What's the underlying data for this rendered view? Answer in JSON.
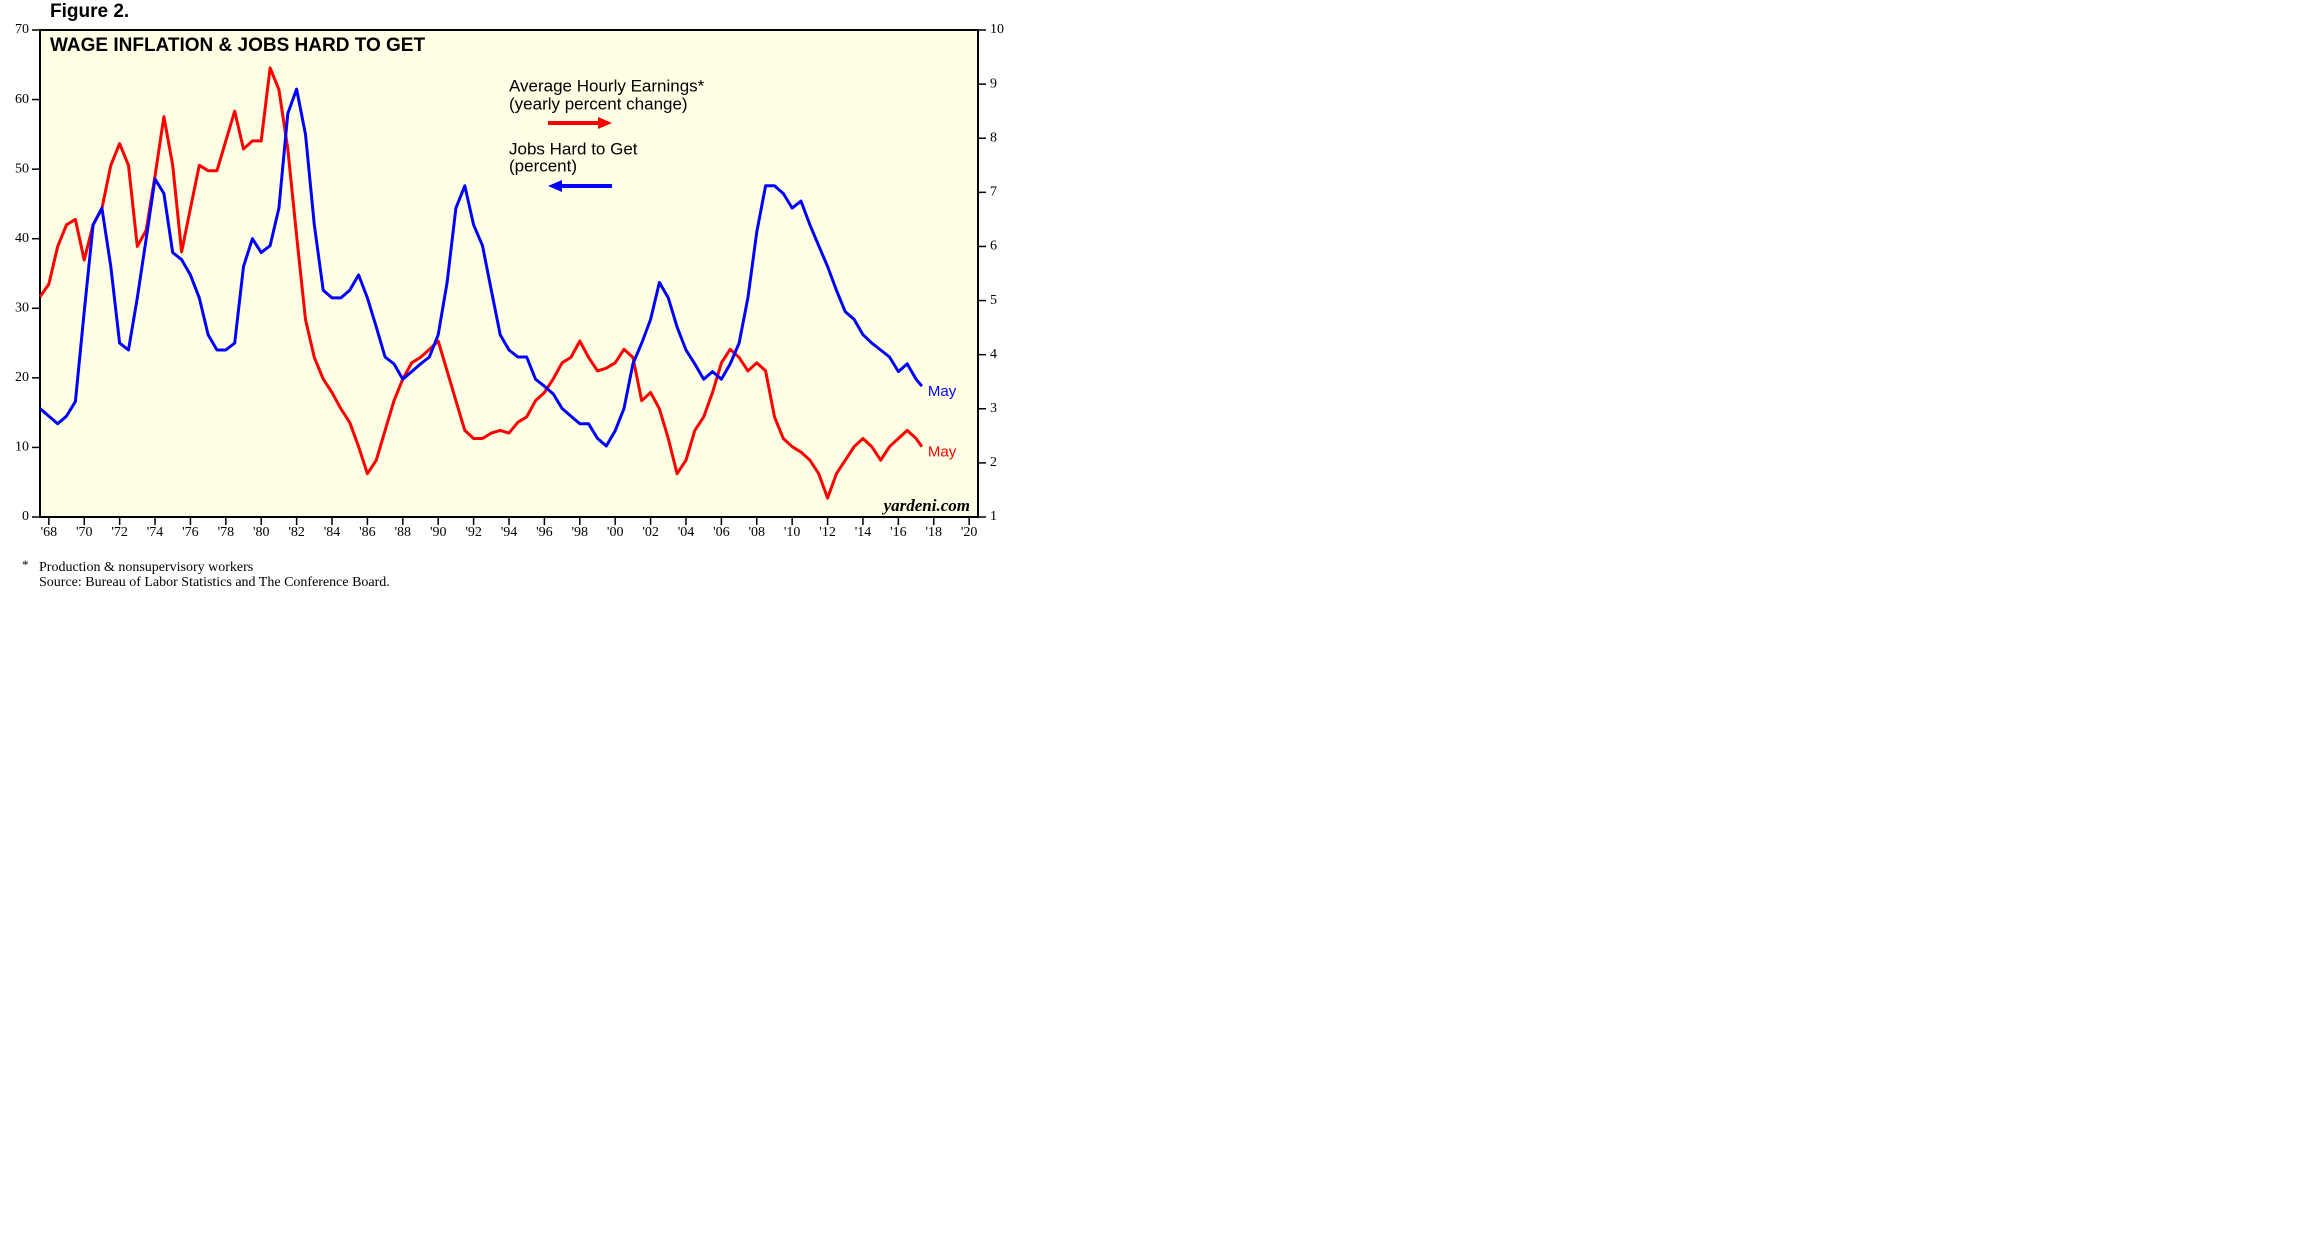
{
  "chart_data": {
    "type": "line",
    "figure_label": "Figure 2.",
    "title": "WAGE INFLATION & JOBS HARD TO GET",
    "source_credit": "yardeni.com",
    "footnote_marker": "*",
    "footnote": "Production & nonsupervisory workers",
    "source": "Source: Bureau of Labor Statistics and The Conference Board.",
    "x": [
      1967.5,
      1968,
      1968.5,
      1969,
      1969.5,
      1970,
      1970.5,
      1971,
      1971.5,
      1972,
      1972.5,
      1973,
      1973.5,
      1974,
      1974.5,
      1975,
      1975.5,
      1976,
      1976.5,
      1977,
      1977.5,
      1978,
      1978.5,
      1979,
      1979.5,
      1980,
      1980.5,
      1981,
      1981.5,
      1982,
      1982.5,
      1983,
      1983.5,
      1984,
      1984.5,
      1985,
      1985.5,
      1986,
      1986.5,
      1987,
      1987.5,
      1988,
      1988.5,
      1989,
      1989.5,
      1990,
      1990.5,
      1991,
      1991.5,
      1992,
      1992.5,
      1993,
      1993.5,
      1994,
      1994.5,
      1995,
      1995.5,
      1996,
      1996.5,
      1997,
      1997.5,
      1998,
      1998.5,
      1999,
      1999.5,
      2000,
      2000.5,
      2001,
      2001.5,
      2002,
      2002.5,
      2003,
      2003.5,
      2004,
      2004.5,
      2005,
      2005.5,
      2006,
      2006.5,
      2007,
      2007.5,
      2008,
      2008.5,
      2009,
      2009.5,
      2010,
      2010.5,
      2011,
      2011.5,
      2012,
      2012.5,
      2013,
      2013.5,
      2014,
      2014.5,
      2015,
      2015.5,
      2016,
      2016.5,
      2017,
      2017.33
    ],
    "xlim": [
      1967.5,
      2020.5
    ],
    "xticks": [
      {
        "value": 1968,
        "label": "'68"
      },
      {
        "value": 1970,
        "label": "'70"
      },
      {
        "value": 1972,
        "label": "'72"
      },
      {
        "value": 1974,
        "label": "'74"
      },
      {
        "value": 1976,
        "label": "'76"
      },
      {
        "value": 1978,
        "label": "'78"
      },
      {
        "value": 1980,
        "label": "'80"
      },
      {
        "value": 1982,
        "label": "'82"
      },
      {
        "value": 1984,
        "label": "'84"
      },
      {
        "value": 1986,
        "label": "'86"
      },
      {
        "value": 1988,
        "label": "'88"
      },
      {
        "value": 1990,
        "label": "'90"
      },
      {
        "value": 1992,
        "label": "'92"
      },
      {
        "value": 1994,
        "label": "'94"
      },
      {
        "value": 1996,
        "label": "'96"
      },
      {
        "value": 1998,
        "label": "'98"
      },
      {
        "value": 2000,
        "label": "'00"
      },
      {
        "value": 2002,
        "label": "'02"
      },
      {
        "value": 2004,
        "label": "'04"
      },
      {
        "value": 2006,
        "label": "'06"
      },
      {
        "value": 2008,
        "label": "'08"
      },
      {
        "value": 2010,
        "label": "'10"
      },
      {
        "value": 2012,
        "label": "'12"
      },
      {
        "value": 2014,
        "label": "'14"
      },
      {
        "value": 2016,
        "label": "'16"
      },
      {
        "value": 2018,
        "label": "'18"
      },
      {
        "value": 2020,
        "label": "'20"
      }
    ],
    "ylim": [
      0,
      70
    ],
    "yticks": [
      0,
      10,
      20,
      30,
      40,
      50,
      60,
      70
    ],
    "y2lim": [
      1,
      10
    ],
    "y2ticks": [
      1,
      2,
      3,
      4,
      5,
      6,
      7,
      8,
      9,
      10
    ],
    "grid": false,
    "series": [
      {
        "name": "Average Hourly Earnings*",
        "name_note": "(yearly percent change)",
        "color": "#ff0000",
        "axis": "y2",
        "end_label": "May",
        "values": [
          5.07,
          5.3,
          6.0,
          6.4,
          6.5,
          5.75,
          6.4,
          6.7,
          7.5,
          7.9,
          7.5,
          6.0,
          6.3,
          7.3,
          8.4,
          7.5,
          5.9,
          6.7,
          7.5,
          7.4,
          7.4,
          7.95,
          8.5,
          7.8,
          7.95,
          7.95,
          9.3,
          8.9,
          7.8,
          6.2,
          4.65,
          3.95,
          3.55,
          3.3,
          3.0,
          2.75,
          2.3,
          1.8,
          2.05,
          2.6,
          3.15,
          3.55,
          3.85,
          3.95,
          4.1,
          4.25,
          3.7,
          3.15,
          2.6,
          2.45,
          2.45,
          2.55,
          2.6,
          2.55,
          2.75,
          2.85,
          3.15,
          3.3,
          3.55,
          3.85,
          3.95,
          4.25,
          3.95,
          3.7,
          3.75,
          3.85,
          4.1,
          3.95,
          3.15,
          3.3,
          3.0,
          2.45,
          1.8,
          2.05,
          2.6,
          2.85,
          3.3,
          3.85,
          4.1,
          3.95,
          3.7,
          3.85,
          3.7,
          2.85,
          2.45,
          2.3,
          2.2,
          2.05,
          1.8,
          1.35,
          1.8,
          2.05,
          2.3,
          2.45,
          2.3,
          2.05,
          2.3,
          2.45,
          2.6,
          2.45,
          2.3
        ]
      },
      {
        "name": "Jobs Hard to Get",
        "name_note": "(percent)",
        "color": "#0000ff",
        "axis": "y",
        "end_label": "May",
        "values": [
          15.6,
          14.5,
          13.4,
          14.5,
          16.6,
          29.5,
          42,
          44.4,
          36,
          25,
          24,
          31.5,
          40,
          48.6,
          46.5,
          38,
          37,
          34.8,
          31.5,
          26.2,
          24,
          24,
          25,
          36,
          40,
          38,
          39,
          44.4,
          58,
          61.5,
          55,
          42,
          32.6,
          31.5,
          31.5,
          32.6,
          34.8,
          31.5,
          27.3,
          23,
          22,
          19.8,
          20.9,
          22,
          23,
          26.2,
          33.7,
          44.4,
          47.6,
          42,
          39,
          32.6,
          26.2,
          24,
          23,
          23,
          19.8,
          18.8,
          17.7,
          15.6,
          14.5,
          13.4,
          13.4,
          11.3,
          10.2,
          12.4,
          15.6,
          22,
          25,
          28.4,
          33.7,
          31.5,
          27.3,
          24,
          22,
          19.8,
          20.9,
          19.8,
          22,
          25,
          31.5,
          41,
          47.6,
          47.6,
          46.5,
          44.4,
          45.4,
          42,
          39,
          36,
          32.6,
          29.5,
          28.4,
          26.2,
          25,
          24,
          23,
          20.9,
          22,
          19.8,
          18.8
        ]
      }
    ]
  }
}
